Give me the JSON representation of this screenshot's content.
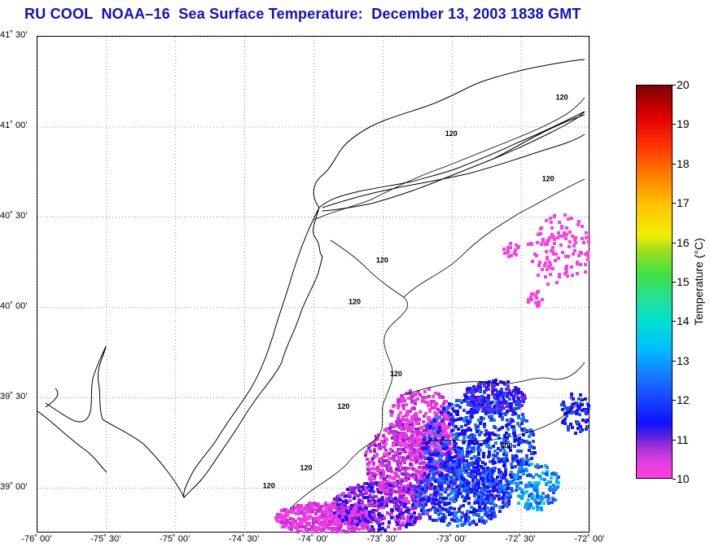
{
  "title": "RU COOL  NOAA–16  Sea Surface Temperature:  December 13, 2003 1838 GMT",
  "map": {
    "lon_range": [
      -76.0,
      -72.0
    ],
    "lat_range": [
      38.75,
      41.5
    ],
    "lat_labels": [
      {
        "lat": 41.5,
        "text": "41˚ 30’"
      },
      {
        "lat": 41.0,
        "text": "41˚ 00’"
      },
      {
        "lat": 40.5,
        "text": "40˚ 30’"
      },
      {
        "lat": 40.0,
        "text": "40˚ 00’"
      },
      {
        "lat": 39.5,
        "text": "39˚ 30’"
      },
      {
        "lat": 39.0,
        "text": "39˚ 00’"
      }
    ],
    "lon_labels": [
      {
        "lon": -76.0,
        "text": "-76˚ 00’"
      },
      {
        "lon": -75.5,
        "text": "-75˚ 30’"
      },
      {
        "lon": -75.0,
        "text": "-75˚ 00’"
      },
      {
        "lon": -74.5,
        "text": "-74˚ 30’"
      },
      {
        "lon": -74.0,
        "text": "-74˚ 00’"
      },
      {
        "lon": -73.5,
        "text": "-73˚ 30’"
      },
      {
        "lon": -73.0,
        "text": "-73˚ 00’"
      },
      {
        "lon": -72.5,
        "text": "-72˚ 30’"
      },
      {
        "lon": -72.0,
        "text": "-72˚ 00’"
      }
    ],
    "grid": "dotted",
    "contour_labels": [
      {
        "lon": -72.25,
        "lat": 41.15,
        "text": "120"
      },
      {
        "lon": -73.05,
        "lat": 40.95,
        "text": "120"
      },
      {
        "lon": -72.35,
        "lat": 40.7,
        "text": "120"
      },
      {
        "lon": -73.55,
        "lat": 40.25,
        "text": "120"
      },
      {
        "lon": -73.75,
        "lat": 40.02,
        "text": "120"
      },
      {
        "lon": -73.45,
        "lat": 39.62,
        "text": "120"
      },
      {
        "lon": -73.83,
        "lat": 39.44,
        "text": "120"
      },
      {
        "lon": -74.1,
        "lat": 39.1,
        "text": "120"
      },
      {
        "lon": -72.65,
        "lat": 39.22,
        "text": "600"
      },
      {
        "lon": -74.37,
        "lat": 39.0,
        "text": "120"
      }
    ]
  },
  "colorbar": {
    "label": "Temperature (°C)",
    "ticks": [
      "10",
      "11",
      "12",
      "13",
      "14",
      "15",
      "16",
      "17",
      "18",
      "19",
      "20"
    ]
  },
  "colors": {
    "title": "#1010c8",
    "sst_cold": "#ff3ce6",
    "sst_mid": "#1010ff",
    "sst_warm": "#00bfff"
  }
}
